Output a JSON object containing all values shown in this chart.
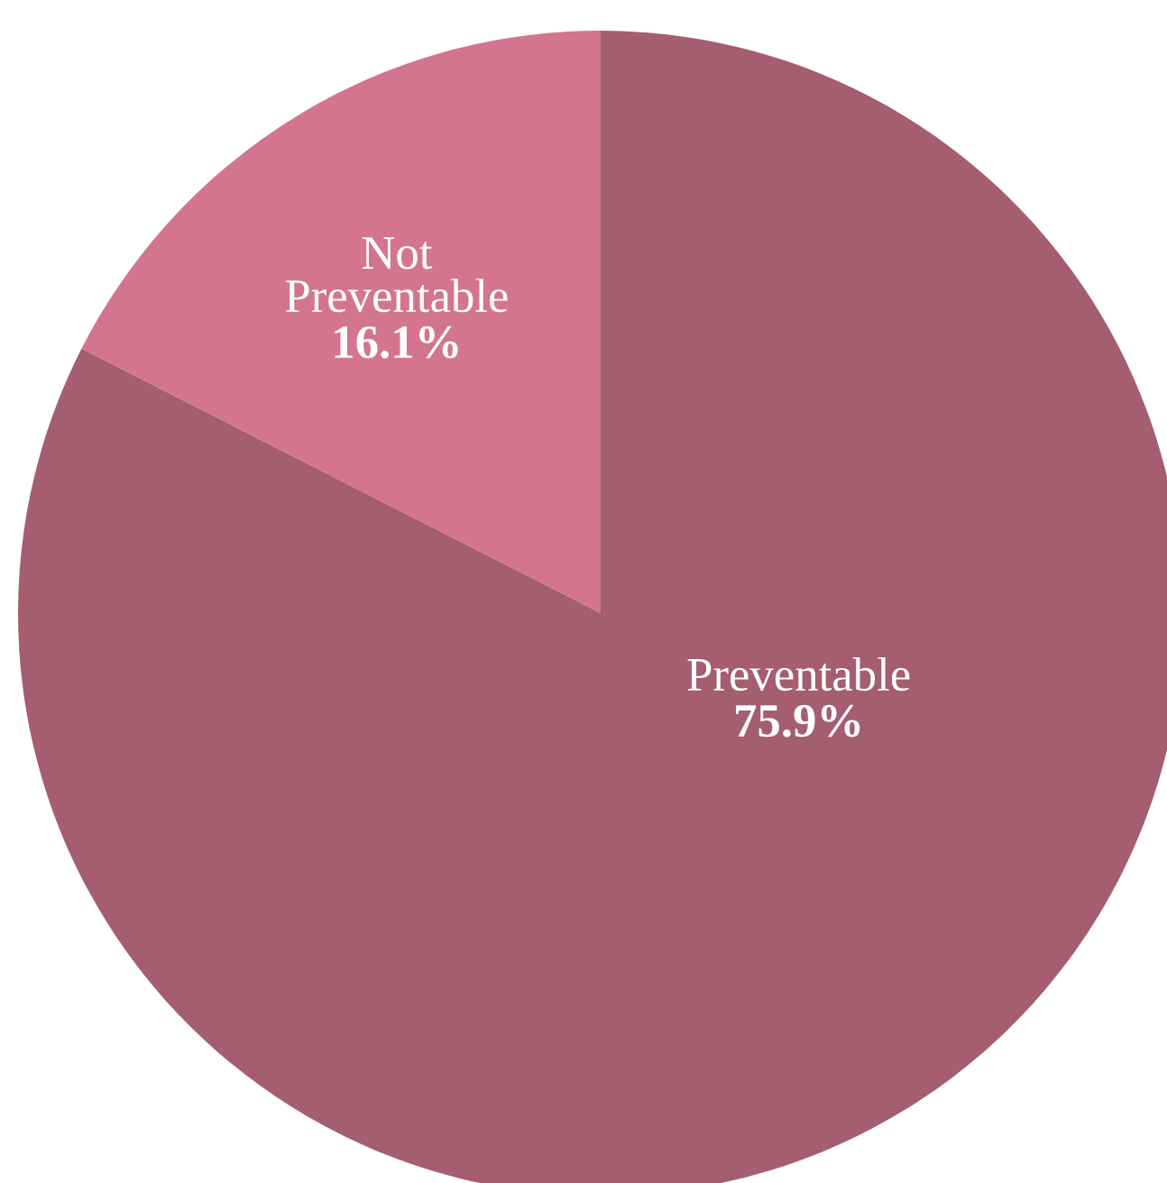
{
  "chart_data": {
    "type": "pie",
    "categories": [
      "Not\nPreventable",
      "Preventable"
    ],
    "values": [
      16.1,
      75.9
    ],
    "value_labels": [
      "16.1%",
      "75.9%"
    ],
    "colors": [
      "#d37590",
      "#a55d72"
    ]
  }
}
